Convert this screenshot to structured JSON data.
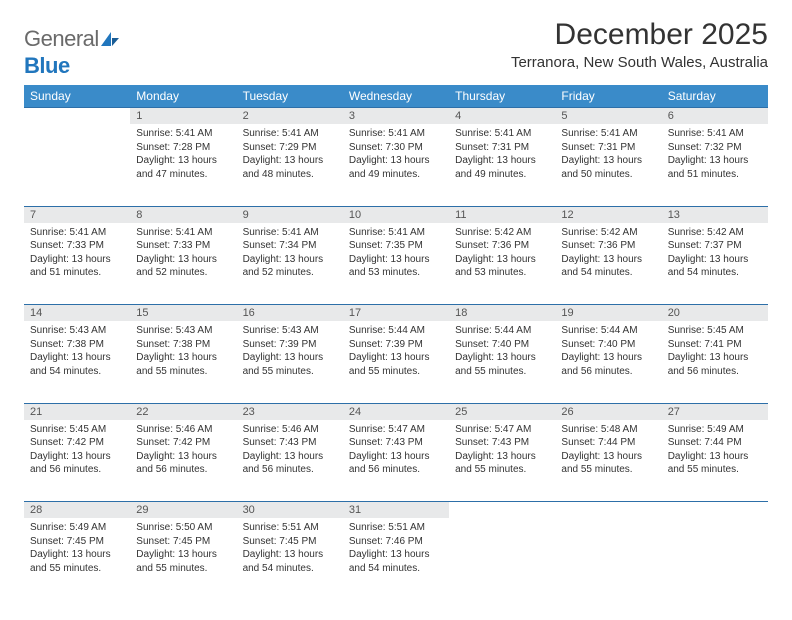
{
  "logo": {
    "top": "General",
    "bottom": "Blue"
  },
  "title": "December 2025",
  "location": "Terranora, New South Wales, Australia",
  "colors": {
    "header_bg": "#3a8bc9",
    "header_text": "#ffffff",
    "daynum_bg": "#e8e9ea",
    "row_divider": "#2d6fa8",
    "body_text": "#333333",
    "logo_gray": "#6a6a6a",
    "logo_blue": "#2176bd",
    "page_bg": "#ffffff"
  },
  "weekdays": [
    "Sunday",
    "Monday",
    "Tuesday",
    "Wednesday",
    "Thursday",
    "Friday",
    "Saturday"
  ],
  "weeks": [
    [
      {
        "n": "",
        "sr": "",
        "ss": "",
        "dl": ""
      },
      {
        "n": "1",
        "sr": "5:41 AM",
        "ss": "7:28 PM",
        "dl": "13 hours and 47 minutes."
      },
      {
        "n": "2",
        "sr": "5:41 AM",
        "ss": "7:29 PM",
        "dl": "13 hours and 48 minutes."
      },
      {
        "n": "3",
        "sr": "5:41 AM",
        "ss": "7:30 PM",
        "dl": "13 hours and 49 minutes."
      },
      {
        "n": "4",
        "sr": "5:41 AM",
        "ss": "7:31 PM",
        "dl": "13 hours and 49 minutes."
      },
      {
        "n": "5",
        "sr": "5:41 AM",
        "ss": "7:31 PM",
        "dl": "13 hours and 50 minutes."
      },
      {
        "n": "6",
        "sr": "5:41 AM",
        "ss": "7:32 PM",
        "dl": "13 hours and 51 minutes."
      }
    ],
    [
      {
        "n": "7",
        "sr": "5:41 AM",
        "ss": "7:33 PM",
        "dl": "13 hours and 51 minutes."
      },
      {
        "n": "8",
        "sr": "5:41 AM",
        "ss": "7:33 PM",
        "dl": "13 hours and 52 minutes."
      },
      {
        "n": "9",
        "sr": "5:41 AM",
        "ss": "7:34 PM",
        "dl": "13 hours and 52 minutes."
      },
      {
        "n": "10",
        "sr": "5:41 AM",
        "ss": "7:35 PM",
        "dl": "13 hours and 53 minutes."
      },
      {
        "n": "11",
        "sr": "5:42 AM",
        "ss": "7:36 PM",
        "dl": "13 hours and 53 minutes."
      },
      {
        "n": "12",
        "sr": "5:42 AM",
        "ss": "7:36 PM",
        "dl": "13 hours and 54 minutes."
      },
      {
        "n": "13",
        "sr": "5:42 AM",
        "ss": "7:37 PM",
        "dl": "13 hours and 54 minutes."
      }
    ],
    [
      {
        "n": "14",
        "sr": "5:43 AM",
        "ss": "7:38 PM",
        "dl": "13 hours and 54 minutes."
      },
      {
        "n": "15",
        "sr": "5:43 AM",
        "ss": "7:38 PM",
        "dl": "13 hours and 55 minutes."
      },
      {
        "n": "16",
        "sr": "5:43 AM",
        "ss": "7:39 PM",
        "dl": "13 hours and 55 minutes."
      },
      {
        "n": "17",
        "sr": "5:44 AM",
        "ss": "7:39 PM",
        "dl": "13 hours and 55 minutes."
      },
      {
        "n": "18",
        "sr": "5:44 AM",
        "ss": "7:40 PM",
        "dl": "13 hours and 55 minutes."
      },
      {
        "n": "19",
        "sr": "5:44 AM",
        "ss": "7:40 PM",
        "dl": "13 hours and 56 minutes."
      },
      {
        "n": "20",
        "sr": "5:45 AM",
        "ss": "7:41 PM",
        "dl": "13 hours and 56 minutes."
      }
    ],
    [
      {
        "n": "21",
        "sr": "5:45 AM",
        "ss": "7:42 PM",
        "dl": "13 hours and 56 minutes."
      },
      {
        "n": "22",
        "sr": "5:46 AM",
        "ss": "7:42 PM",
        "dl": "13 hours and 56 minutes."
      },
      {
        "n": "23",
        "sr": "5:46 AM",
        "ss": "7:43 PM",
        "dl": "13 hours and 56 minutes."
      },
      {
        "n": "24",
        "sr": "5:47 AM",
        "ss": "7:43 PM",
        "dl": "13 hours and 56 minutes."
      },
      {
        "n": "25",
        "sr": "5:47 AM",
        "ss": "7:43 PM",
        "dl": "13 hours and 55 minutes."
      },
      {
        "n": "26",
        "sr": "5:48 AM",
        "ss": "7:44 PM",
        "dl": "13 hours and 55 minutes."
      },
      {
        "n": "27",
        "sr": "5:49 AM",
        "ss": "7:44 PM",
        "dl": "13 hours and 55 minutes."
      }
    ],
    [
      {
        "n": "28",
        "sr": "5:49 AM",
        "ss": "7:45 PM",
        "dl": "13 hours and 55 minutes."
      },
      {
        "n": "29",
        "sr": "5:50 AM",
        "ss": "7:45 PM",
        "dl": "13 hours and 55 minutes."
      },
      {
        "n": "30",
        "sr": "5:51 AM",
        "ss": "7:45 PM",
        "dl": "13 hours and 54 minutes."
      },
      {
        "n": "31",
        "sr": "5:51 AM",
        "ss": "7:46 PM",
        "dl": "13 hours and 54 minutes."
      },
      {
        "n": "",
        "sr": "",
        "ss": "",
        "dl": ""
      },
      {
        "n": "",
        "sr": "",
        "ss": "",
        "dl": ""
      },
      {
        "n": "",
        "sr": "",
        "ss": "",
        "dl": ""
      }
    ]
  ],
  "labels": {
    "sunrise": "Sunrise:",
    "sunset": "Sunset:",
    "daylight": "Daylight:"
  }
}
